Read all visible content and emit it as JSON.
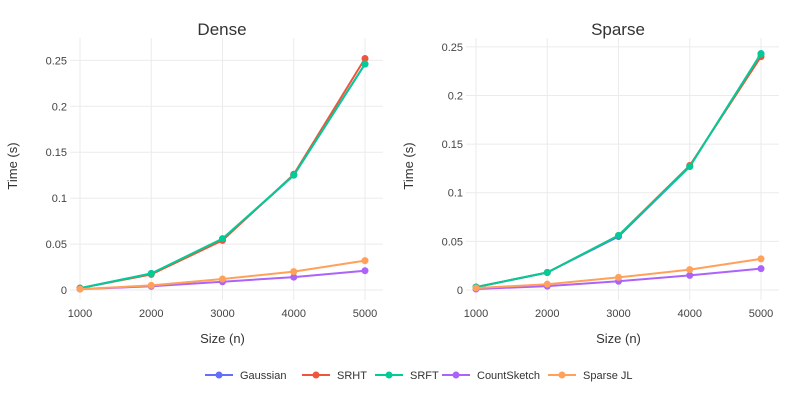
{
  "chart_data": [
    {
      "type": "line",
      "title": "Dense",
      "xlabel": "Size (n)",
      "ylabel": "Time (s)",
      "x": [
        1000,
        2000,
        3000,
        4000,
        5000
      ],
      "xlim": [
        1000,
        5000
      ],
      "ylim": [
        0,
        0.27
      ],
      "xticks": [
        "1000",
        "2000",
        "3000",
        "4000",
        "5000"
      ],
      "yticks": [
        0,
        0.05,
        0.1,
        0.15,
        0.2,
        0.25
      ],
      "ytick_labels": [
        "0",
        "0.05",
        "0.1",
        "0.15",
        "0.2",
        "0.25"
      ],
      "grid": true,
      "series": [
        {
          "name": "Gaussian",
          "values": [
            0.002,
            0.018,
            0.055,
            0.125,
            0.246
          ]
        },
        {
          "name": "SRHT",
          "values": [
            0.002,
            0.017,
            0.054,
            0.126,
            0.252
          ]
        },
        {
          "name": "SRFT",
          "values": [
            0.002,
            0.018,
            0.056,
            0.125,
            0.246
          ]
        },
        {
          "name": "CountSketch",
          "values": [
            0.001,
            0.004,
            0.009,
            0.014,
            0.021
          ]
        },
        {
          "name": "Sparse JL",
          "values": [
            0.001,
            0.005,
            0.012,
            0.02,
            0.032
          ]
        }
      ]
    },
    {
      "type": "line",
      "title": "Sparse",
      "xlabel": "Size (n)",
      "ylabel": "Time (s)",
      "x": [
        1000,
        2000,
        3000,
        4000,
        5000
      ],
      "xlim": [
        1000,
        5000
      ],
      "ylim": [
        0,
        0.255
      ],
      "xticks": [
        "1000",
        "2000",
        "3000",
        "4000",
        "5000"
      ],
      "yticks": [
        0,
        0.05,
        0.1,
        0.15,
        0.2,
        0.25
      ],
      "ytick_labels": [
        "0",
        "0.05",
        "0.1",
        "0.15",
        "0.2",
        "0.25"
      ],
      "grid": true,
      "series": [
        {
          "name": "Gaussian",
          "values": [
            0.003,
            0.018,
            0.055,
            0.127,
            0.243
          ]
        },
        {
          "name": "SRHT",
          "values": [
            0.003,
            0.018,
            0.056,
            0.128,
            0.24
          ]
        },
        {
          "name": "SRFT",
          "values": [
            0.003,
            0.018,
            0.056,
            0.127,
            0.243
          ]
        },
        {
          "name": "CountSketch",
          "values": [
            0.001,
            0.004,
            0.009,
            0.015,
            0.022
          ]
        },
        {
          "name": "Sparse JL",
          "values": [
            0.002,
            0.006,
            0.013,
            0.021,
            0.032
          ]
        }
      ]
    }
  ],
  "legend": {
    "placement": "bottom-center",
    "items": [
      {
        "name": "Gaussian",
        "color": "#636efa"
      },
      {
        "name": "SRHT",
        "color": "#ef553b"
      },
      {
        "name": "SRFT",
        "color": "#00cc96"
      },
      {
        "name": "CountSketch",
        "color": "#ab63fa"
      },
      {
        "name": "Sparse JL",
        "color": "#ffa15a"
      }
    ]
  },
  "colors": {
    "Gaussian": "#636efa",
    "SRHT": "#ef553b",
    "SRFT": "#00cc96",
    "CountSketch": "#ab63fa",
    "Sparse JL": "#ffa15a"
  }
}
